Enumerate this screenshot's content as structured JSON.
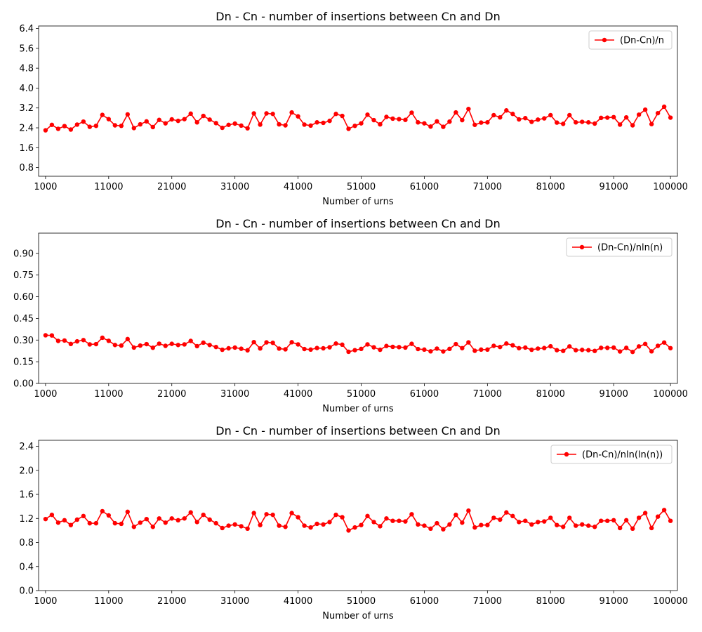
{
  "chart_data": [
    {
      "type": "line",
      "title": "Dn - Cn - number of insertions between Cn and Dn",
      "xlabel": "Number of urns",
      "ylabel": "",
      "xlim": [
        -100,
        101100
      ],
      "ylim": [
        0.45,
        6.5
      ],
      "x_ticks": [
        1000,
        11000,
        21000,
        31000,
        41000,
        51000,
        61000,
        71000,
        81000,
        91000,
        100000
      ],
      "x_tick_labels": [
        "1000",
        "11000",
        "21000",
        "31000",
        "41000",
        "51000",
        "61000",
        "71000",
        "81000",
        "91000",
        "100000"
      ],
      "y_ticks": [
        0.8,
        1.6,
        2.4,
        3.2,
        4.0,
        4.8,
        5.6,
        6.4
      ],
      "y_tick_labels": [
        "0.8",
        "1.6",
        "2.4",
        "3.2",
        "4.0",
        "4.8",
        "5.6",
        "6.4"
      ],
      "legend_position": "top-right",
      "grid": false,
      "series": [
        {
          "name": "(Dn-Cn)/n",
          "color": "#ff0000",
          "x": [
            1000,
            2000,
            3000,
            4000,
            5000,
            6000,
            7000,
            8000,
            9000,
            10000,
            11000,
            12000,
            13000,
            14000,
            15000,
            16000,
            17000,
            18000,
            19000,
            20000,
            21000,
            22000,
            23000,
            24000,
            25000,
            26000,
            27000,
            28000,
            29000,
            30000,
            31000,
            32000,
            33000,
            34000,
            35000,
            36000,
            37000,
            38000,
            39000,
            40000,
            41000,
            42000,
            43000,
            44000,
            45000,
            46000,
            47000,
            48000,
            49000,
            50000,
            51000,
            52000,
            53000,
            54000,
            55000,
            56000,
            57000,
            58000,
            59000,
            60000,
            61000,
            62000,
            63000,
            64000,
            65000,
            66000,
            67000,
            68000,
            69000,
            70000,
            71000,
            72000,
            73000,
            74000,
            75000,
            76000,
            77000,
            78000,
            79000,
            80000,
            81000,
            82000,
            83000,
            84000,
            85000,
            86000,
            87000,
            88000,
            89000,
            90000,
            91000,
            92000,
            93000,
            94000,
            95000,
            96000,
            97000,
            98000,
            99000,
            100000
          ],
          "y": [
            2.3,
            2.52,
            2.36,
            2.47,
            2.33,
            2.53,
            2.65,
            2.44,
            2.48,
            2.92,
            2.75,
            2.5,
            2.48,
            2.94,
            2.39,
            2.54,
            2.66,
            2.43,
            2.72,
            2.58,
            2.74,
            2.68,
            2.75,
            2.97,
            2.62,
            2.88,
            2.73,
            2.59,
            2.4,
            2.52,
            2.57,
            2.49,
            2.38,
            2.98,
            2.53,
            2.98,
            2.96,
            2.54,
            2.5,
            3.02,
            2.86,
            2.53,
            2.49,
            2.62,
            2.6,
            2.68,
            2.96,
            2.88,
            2.36,
            2.48,
            2.58,
            2.93,
            2.71,
            2.54,
            2.84,
            2.77,
            2.75,
            2.72,
            3.01,
            2.62,
            2.58,
            2.45,
            2.66,
            2.44,
            2.65,
            3.02,
            2.71,
            3.16,
            2.52,
            2.61,
            2.62,
            2.91,
            2.82,
            3.1,
            2.96,
            2.74,
            2.79,
            2.64,
            2.73,
            2.78,
            2.91,
            2.61,
            2.56,
            2.91,
            2.62,
            2.64,
            2.62,
            2.57,
            2.8,
            2.81,
            2.83,
            2.53,
            2.82,
            2.5,
            2.93,
            3.13,
            2.55,
            2.99,
            3.25,
            2.81
          ]
        }
      ]
    },
    {
      "type": "line",
      "title": "Dn - Cn - number of insertions between Cn and Dn",
      "xlabel": "Number of urns",
      "ylabel": "",
      "xlim": [
        -100,
        101100
      ],
      "ylim": [
        0.0,
        1.04
      ],
      "x_ticks": [
        1000,
        11000,
        21000,
        31000,
        41000,
        51000,
        61000,
        71000,
        81000,
        91000,
        100000
      ],
      "x_tick_labels": [
        "1000",
        "11000",
        "21000",
        "31000",
        "41000",
        "51000",
        "61000",
        "71000",
        "81000",
        "91000",
        "100000"
      ],
      "y_ticks": [
        0.0,
        0.15,
        0.3,
        0.45,
        0.6,
        0.75,
        0.9
      ],
      "y_tick_labels": [
        "0.00",
        "0.15",
        "0.30",
        "0.45",
        "0.60",
        "0.75",
        "0.90"
      ],
      "legend_position": "top-right",
      "grid": false,
      "series": [
        {
          "name": "(Dn-Cn)/nln(n)",
          "color": "#ff0000",
          "x": [
            1000,
            2000,
            3000,
            4000,
            5000,
            6000,
            7000,
            8000,
            9000,
            10000,
            11000,
            12000,
            13000,
            14000,
            15000,
            16000,
            17000,
            18000,
            19000,
            20000,
            21000,
            22000,
            23000,
            24000,
            25000,
            26000,
            27000,
            28000,
            29000,
            30000,
            31000,
            32000,
            33000,
            34000,
            35000,
            36000,
            37000,
            38000,
            39000,
            40000,
            41000,
            42000,
            43000,
            44000,
            45000,
            46000,
            47000,
            48000,
            49000,
            50000,
            51000,
            52000,
            53000,
            54000,
            55000,
            56000,
            57000,
            58000,
            59000,
            60000,
            61000,
            62000,
            63000,
            64000,
            65000,
            66000,
            67000,
            68000,
            69000,
            70000,
            71000,
            72000,
            73000,
            74000,
            75000,
            76000,
            77000,
            78000,
            79000,
            80000,
            81000,
            82000,
            83000,
            84000,
            85000,
            86000,
            87000,
            88000,
            89000,
            90000,
            91000,
            92000,
            93000,
            94000,
            95000,
            96000,
            97000,
            98000,
            99000,
            100000
          ],
          "y": [
            0.333,
            0.332,
            0.294,
            0.297,
            0.273,
            0.291,
            0.3,
            0.27,
            0.272,
            0.316,
            0.295,
            0.266,
            0.262,
            0.307,
            0.248,
            0.262,
            0.272,
            0.247,
            0.275,
            0.26,
            0.274,
            0.266,
            0.27,
            0.294,
            0.258,
            0.282,
            0.266,
            0.252,
            0.233,
            0.243,
            0.248,
            0.24,
            0.229,
            0.286,
            0.242,
            0.284,
            0.281,
            0.241,
            0.236,
            0.285,
            0.27,
            0.238,
            0.234,
            0.245,
            0.243,
            0.25,
            0.276,
            0.268,
            0.219,
            0.23,
            0.239,
            0.27,
            0.25,
            0.233,
            0.259,
            0.253,
            0.251,
            0.248,
            0.274,
            0.238,
            0.234,
            0.222,
            0.241,
            0.221,
            0.239,
            0.272,
            0.244,
            0.284,
            0.226,
            0.234,
            0.234,
            0.26,
            0.252,
            0.276,
            0.264,
            0.244,
            0.248,
            0.233,
            0.241,
            0.245,
            0.257,
            0.23,
            0.225,
            0.256,
            0.23,
            0.232,
            0.23,
            0.225,
            0.246,
            0.246,
            0.248,
            0.221,
            0.246,
            0.218,
            0.256,
            0.273,
            0.222,
            0.26,
            0.283,
            0.244
          ]
        }
      ]
    },
    {
      "type": "line",
      "title": "Dn - Cn - number of insertions between Cn and Dn",
      "xlabel": "Number of urns",
      "ylabel": "",
      "xlim": [
        -100,
        101100
      ],
      "ylim": [
        0.0,
        2.5
      ],
      "x_ticks": [
        1000,
        11000,
        21000,
        31000,
        41000,
        51000,
        61000,
        71000,
        81000,
        91000,
        100000
      ],
      "x_tick_labels": [
        "1000",
        "11000",
        "21000",
        "31000",
        "41000",
        "51000",
        "61000",
        "71000",
        "81000",
        "91000",
        "100000"
      ],
      "y_ticks": [
        0.0,
        0.4,
        0.8,
        1.2,
        1.6,
        2.0,
        2.4
      ],
      "y_tick_labels": [
        "0.0",
        "0.4",
        "0.8",
        "1.2",
        "1.6",
        "2.0",
        "2.4"
      ],
      "legend_position": "top-right",
      "grid": false,
      "series": [
        {
          "name": "(Dn-Cn)/nln(ln(n))",
          "color": "#ff0000",
          "x": [
            1000,
            2000,
            3000,
            4000,
            5000,
            6000,
            7000,
            8000,
            9000,
            10000,
            11000,
            12000,
            13000,
            14000,
            15000,
            16000,
            17000,
            18000,
            19000,
            20000,
            21000,
            22000,
            23000,
            24000,
            25000,
            26000,
            27000,
            28000,
            29000,
            30000,
            31000,
            32000,
            33000,
            34000,
            35000,
            36000,
            37000,
            38000,
            39000,
            40000,
            41000,
            42000,
            43000,
            44000,
            45000,
            46000,
            47000,
            48000,
            49000,
            50000,
            51000,
            52000,
            53000,
            54000,
            55000,
            56000,
            57000,
            58000,
            59000,
            60000,
            61000,
            62000,
            63000,
            64000,
            65000,
            66000,
            67000,
            68000,
            69000,
            70000,
            71000,
            72000,
            73000,
            74000,
            75000,
            76000,
            77000,
            78000,
            79000,
            80000,
            81000,
            82000,
            83000,
            84000,
            85000,
            86000,
            87000,
            88000,
            89000,
            90000,
            91000,
            92000,
            93000,
            94000,
            95000,
            96000,
            97000,
            98000,
            99000,
            100000
          ],
          "y": [
            1.19,
            1.26,
            1.13,
            1.17,
            1.09,
            1.18,
            1.24,
            1.12,
            1.12,
            1.32,
            1.25,
            1.12,
            1.11,
            1.31,
            1.06,
            1.13,
            1.19,
            1.06,
            1.2,
            1.13,
            1.2,
            1.17,
            1.2,
            1.3,
            1.14,
            1.26,
            1.18,
            1.12,
            1.04,
            1.08,
            1.1,
            1.07,
            1.03,
            1.29,
            1.09,
            1.27,
            1.26,
            1.08,
            1.06,
            1.29,
            1.22,
            1.08,
            1.05,
            1.11,
            1.1,
            1.14,
            1.26,
            1.22,
            1.0,
            1.05,
            1.09,
            1.24,
            1.14,
            1.07,
            1.2,
            1.16,
            1.16,
            1.15,
            1.27,
            1.1,
            1.08,
            1.03,
            1.12,
            1.02,
            1.1,
            1.26,
            1.13,
            1.33,
            1.05,
            1.09,
            1.09,
            1.21,
            1.18,
            1.3,
            1.24,
            1.14,
            1.16,
            1.1,
            1.14,
            1.15,
            1.21,
            1.09,
            1.06,
            1.21,
            1.08,
            1.1,
            1.08,
            1.06,
            1.16,
            1.16,
            1.17,
            1.04,
            1.17,
            1.03,
            1.21,
            1.29,
            1.04,
            1.23,
            1.34,
            1.16
          ]
        }
      ]
    }
  ]
}
